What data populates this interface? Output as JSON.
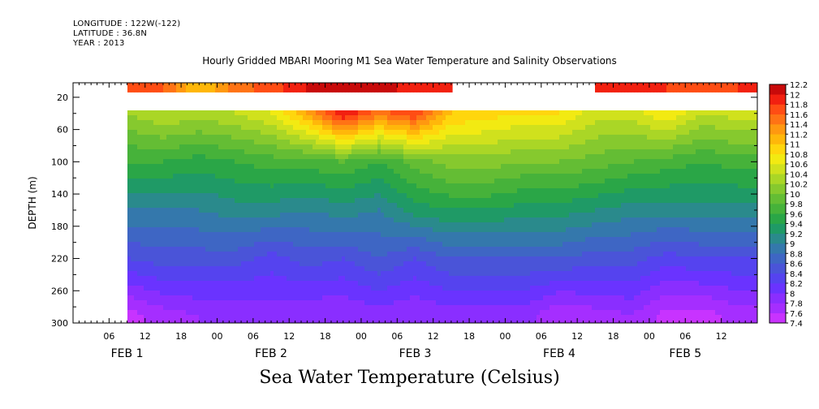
{
  "header": {
    "longitude": "LONGITUDE : 122W(-122)",
    "latitude": "LATITUDE : 36.8N",
    "year": "YEAR : 2013"
  },
  "chart_data": {
    "type": "heatmap",
    "title": "Hourly Gridded MBARI Mooring M1 Sea Water Temperature and Salinity Observations",
    "subtitle": "Sea Water Temperature (Celsius)",
    "ylabel": "DEPTH (m)",
    "xlabel": "",
    "ylim": [
      300,
      2
    ],
    "y_ticks": [
      20,
      60,
      100,
      140,
      180,
      220,
      260,
      300
    ],
    "x_hour_ticks": [
      {
        "t": 6,
        "label": "06"
      },
      {
        "t": 12,
        "label": "12"
      },
      {
        "t": 18,
        "label": "18"
      },
      {
        "t": 24,
        "label": "00"
      },
      {
        "t": 30,
        "label": "06"
      },
      {
        "t": 36,
        "label": "12"
      },
      {
        "t": 42,
        "label": "18"
      },
      {
        "t": 48,
        "label": "00"
      },
      {
        "t": 54,
        "label": "06"
      },
      {
        "t": 60,
        "label": "12"
      },
      {
        "t": 66,
        "label": "18"
      },
      {
        "t": 72,
        "label": "00"
      },
      {
        "t": 78,
        "label": "06"
      },
      {
        "t": 84,
        "label": "12"
      },
      {
        "t": 90,
        "label": "18"
      },
      {
        "t": 96,
        "label": "00"
      },
      {
        "t": 102,
        "label": "06"
      },
      {
        "t": 108,
        "label": "12"
      }
    ],
    "x_day_labels": [
      {
        "t": 9,
        "label": "FEB  1"
      },
      {
        "t": 33,
        "label": "FEB  2"
      },
      {
        "t": 57,
        "label": "FEB  3"
      },
      {
        "t": 81,
        "label": "FEB  4"
      },
      {
        "t": 102,
        "label": "FEB  5"
      }
    ],
    "x_range_hours": [
      0,
      114
    ],
    "colorbar": {
      "levels": [
        "7.4",
        "7.6",
        "7.8",
        "8",
        "8.2",
        "8.4",
        "8.6",
        "8.8",
        "9",
        "9.2",
        "9.4",
        "9.6",
        "9.8",
        "10",
        "10.2",
        "10.4",
        "10.6",
        "10.8",
        "11",
        "11.2",
        "11.4",
        "11.6",
        "11.8",
        "12",
        "12.2"
      ],
      "colors": [
        "#c833ff",
        "#a52eff",
        "#8a2eff",
        "#6a33ff",
        "#5543ef",
        "#4a54d8",
        "#3e66c4",
        "#3478ac",
        "#2a8a8c",
        "#1f9a66",
        "#2aa647",
        "#46b23a",
        "#64bd34",
        "#86c92e",
        "#aad626",
        "#d0e11d",
        "#f2ea12",
        "#ffd60d",
        "#ffb70a",
        "#ff9810",
        "#ff7315",
        "#ff4d14",
        "#f22010",
        "#c80a0a"
      ]
    },
    "series": [
      {
        "depth": 10,
        "time": [
          9,
          15,
          21,
          27,
          33,
          39,
          45,
          51,
          57,
          63,
          69,
          75,
          81,
          87,
          93,
          99,
          105,
          111
        ],
        "values": [
          11.7,
          11.6,
          11.0,
          11.5,
          11.7,
          12.0,
          12.2,
          12.1,
          11.9,
          null,
          null,
          null,
          null,
          11.8,
          11.9,
          11.8,
          11.7,
          11.8
        ]
      },
      {
        "depth": 40,
        "time": [
          9,
          15,
          21,
          27,
          33,
          39,
          45,
          51,
          57,
          63,
          69,
          75,
          81,
          87,
          93,
          99,
          105,
          111
        ],
        "values": [
          10.2,
          10.4,
          10.3,
          10.4,
          10.6,
          11.2,
          12.0,
          11.5,
          11.8,
          11.0,
          10.9,
          10.8,
          10.8,
          10.5,
          10.5,
          10.8,
          10.4,
          10.5
        ]
      },
      {
        "depth": 100,
        "time": [
          9,
          15,
          21,
          27,
          33,
          39,
          45,
          51,
          57,
          63,
          69,
          75,
          81,
          87,
          93,
          99,
          105,
          111
        ],
        "values": [
          9.6,
          9.6,
          9.5,
          9.6,
          9.7,
          9.7,
          9.8,
          9.6,
          9.9,
          10.1,
          10.1,
          10.0,
          10.0,
          9.9,
          9.8,
          9.7,
          9.6,
          9.7
        ]
      },
      {
        "depth": 160,
        "time": [
          9,
          15,
          21,
          27,
          33,
          39,
          45,
          51,
          57,
          63,
          69,
          75,
          81,
          87,
          93,
          99,
          105,
          111
        ],
        "values": [
          9.0,
          9.0,
          9.0,
          9.1,
          9.1,
          9.0,
          9.1,
          9.0,
          9.3,
          9.4,
          9.4,
          9.3,
          9.3,
          9.2,
          9.1,
          9.1,
          9.1,
          9.1
        ]
      },
      {
        "depth": 220,
        "time": [
          9,
          15,
          21,
          27,
          33,
          39,
          45,
          51,
          57,
          63,
          69,
          75,
          81,
          87,
          93,
          99,
          105,
          111
        ],
        "values": [
          8.4,
          8.5,
          8.5,
          8.5,
          8.3,
          8.5,
          8.4,
          8.6,
          8.4,
          8.6,
          8.6,
          8.6,
          8.6,
          8.5,
          8.5,
          8.3,
          8.4,
          8.4
        ]
      },
      {
        "depth": 290,
        "time": [
          9,
          15,
          21,
          27,
          33,
          39,
          45,
          51,
          57,
          63,
          69,
          75,
          81,
          87,
          93,
          99,
          105,
          111
        ],
        "values": [
          7.5,
          7.7,
          7.8,
          7.8,
          7.9,
          7.8,
          7.8,
          7.9,
          7.8,
          7.9,
          7.9,
          7.9,
          7.6,
          7.7,
          7.8,
          7.5,
          7.5,
          7.7
        ]
      }
    ]
  }
}
